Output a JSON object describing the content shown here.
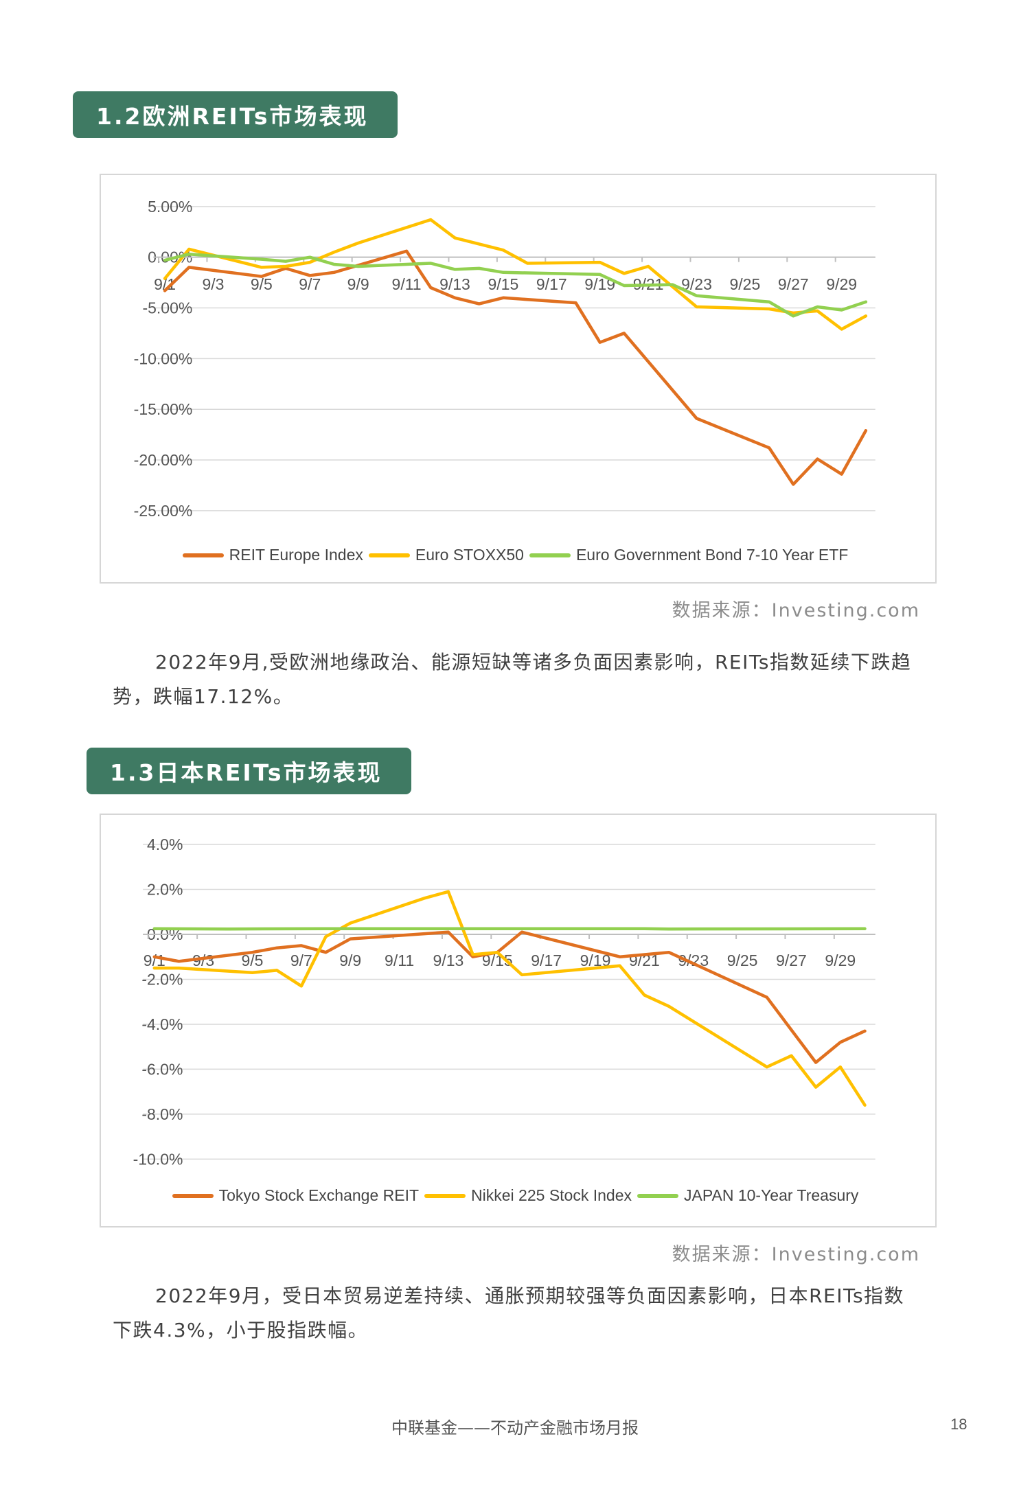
{
  "section1": {
    "heading": "1.2欧洲REITs市场表现",
    "source": "数据来源：Investing.com",
    "paragraph": "2022年9月,受欧洲地缘政治、能源短缺等诸多负面因素影响，REITs指数延续下跌趋势，跌幅17.12%。"
  },
  "section2": {
    "heading": "1.3日本REITs市场表现",
    "source": "数据来源：Investing.com",
    "paragraph": "2022年9月，受日本贸易逆差持续、通胀预期较强等负面因素影响，日本REITs指数下跌4.3%，小于股指跌幅。"
  },
  "footer": {
    "title": "中联基金——不动产金融市场月报",
    "page": "18"
  },
  "chart_data": [
    {
      "type": "line",
      "ylim": [
        -0.25,
        0.05
      ],
      "yticks": [
        0.05,
        0,
        -0.05,
        -0.1,
        -0.15,
        -0.2,
        -0.25
      ],
      "ytick_labels": [
        "5.00%",
        "0.00%",
        "-5.00%",
        "-10.00%",
        "-15.00%",
        "-20.00%",
        "-25.00%"
      ],
      "xtick_labels": [
        "9/1",
        "9/3",
        "9/5",
        "9/7",
        "9/9",
        "9/11",
        "9/13",
        "9/15",
        "9/17",
        "9/19",
        "9/21",
        "9/23",
        "9/25",
        "9/27",
        "9/29"
      ],
      "grid": true,
      "legend_position": "bottom",
      "series": [
        {
          "name": "REIT Europe Index",
          "color": "#e07020",
          "points": [
            [
              1,
              -0.033
            ],
            [
              2,
              -0.01
            ],
            [
              5,
              -0.019
            ],
            [
              6,
              -0.011
            ],
            [
              7,
              -0.018
            ],
            [
              8,
              -0.015
            ],
            [
              11,
              0.006
            ],
            [
              12,
              -0.03
            ],
            [
              13,
              -0.04
            ],
            [
              14,
              -0.046
            ],
            [
              15,
              -0.04
            ],
            [
              18,
              -0.045
            ],
            [
              19,
              -0.084
            ],
            [
              20,
              -0.075
            ],
            [
              23,
              -0.159
            ],
            [
              26,
              -0.188
            ],
            [
              27,
              -0.224
            ],
            [
              28,
              -0.199
            ],
            [
              29,
              -0.214
            ],
            [
              30,
              -0.171
            ]
          ]
        },
        {
          "name": "Euro STOXX50",
          "color": "#ffc000",
          "points": [
            [
              1,
              -0.021
            ],
            [
              2,
              0.008
            ],
            [
              5,
              -0.01
            ],
            [
              6,
              -0.009
            ],
            [
              7,
              -0.005
            ],
            [
              8,
              0.005
            ],
            [
              9,
              0.014
            ],
            [
              12,
              0.037
            ],
            [
              13,
              0.019
            ],
            [
              15,
              0.007
            ],
            [
              16,
              -0.006
            ],
            [
              19,
              -0.005
            ],
            [
              20,
              -0.016
            ],
            [
              21,
              -0.009
            ],
            [
              23,
              -0.049
            ],
            [
              26,
              -0.051
            ],
            [
              27,
              -0.055
            ],
            [
              28,
              -0.053
            ],
            [
              29,
              -0.071
            ],
            [
              30,
              -0.058
            ]
          ]
        },
        {
          "name": "Euro Government Bond 7-10 Year ETF",
          "color": "#92d050",
          "points": [
            [
              1,
              -0.003
            ],
            [
              2,
              0.003
            ],
            [
              5,
              -0.002
            ],
            [
              6,
              -0.004
            ],
            [
              7,
              0.0
            ],
            [
              8,
              -0.007
            ],
            [
              9,
              -0.009
            ],
            [
              12,
              -0.006
            ],
            [
              13,
              -0.012
            ],
            [
              14,
              -0.011
            ],
            [
              15,
              -0.015
            ],
            [
              19,
              -0.017
            ],
            [
              20,
              -0.028
            ],
            [
              22,
              -0.027
            ],
            [
              23,
              -0.038
            ],
            [
              26,
              -0.044
            ],
            [
              27,
              -0.058
            ],
            [
              28,
              -0.049
            ],
            [
              29,
              -0.052
            ],
            [
              30,
              -0.044
            ]
          ]
        }
      ]
    },
    {
      "type": "line",
      "ylim": [
        -0.1,
        0.04
      ],
      "yticks": [
        0.04,
        0.02,
        0,
        -0.02,
        -0.04,
        -0.06,
        -0.08,
        -0.1
      ],
      "ytick_labels": [
        "4.0%",
        "2.0%",
        "0.0%",
        "-2.0%",
        "-4.0%",
        "-6.0%",
        "-8.0%",
        "-10.0%"
      ],
      "xtick_labels": [
        "9/1",
        "9/3",
        "9/5",
        "9/7",
        "9/9",
        "9/11",
        "9/13",
        "9/15",
        "9/17",
        "9/19",
        "9/21",
        "9/23",
        "9/25",
        "9/27",
        "9/29"
      ],
      "grid": true,
      "legend_position": "bottom",
      "series": [
        {
          "name": "Tokyo Stock Exchange REIT",
          "color": "#e07020",
          "points": [
            [
              1,
              -0.01
            ],
            [
              2,
              -0.012
            ],
            [
              5,
              -0.008
            ],
            [
              6,
              -0.006
            ],
            [
              7,
              -0.005
            ],
            [
              8,
              -0.008
            ],
            [
              9,
              -0.002
            ],
            [
              13,
              0.001
            ],
            [
              14,
              -0.01
            ],
            [
              15,
              -0.008
            ],
            [
              16,
              0.001
            ],
            [
              20,
              -0.01
            ],
            [
              21,
              -0.009
            ],
            [
              22,
              -0.008
            ],
            [
              26,
              -0.028
            ],
            [
              28,
              -0.057
            ],
            [
              29,
              -0.048
            ],
            [
              30,
              -0.043
            ]
          ]
        },
        {
          "name": "Nikkei 225 Stock Index",
          "color": "#ffc000",
          "points": [
            [
              1,
              -0.015
            ],
            [
              2,
              -0.015
            ],
            [
              5,
              -0.017
            ],
            [
              6,
              -0.016
            ],
            [
              7,
              -0.023
            ],
            [
              8,
              -0.001
            ],
            [
              9,
              0.005
            ],
            [
              12,
              0.016
            ],
            [
              13,
              0.019
            ],
            [
              14,
              -0.009
            ],
            [
              15,
              -0.008
            ],
            [
              16,
              -0.018
            ],
            [
              20,
              -0.014
            ],
            [
              21,
              -0.027
            ],
            [
              22,
              -0.032
            ],
            [
              26,
              -0.059
            ],
            [
              27,
              -0.054
            ],
            [
              28,
              -0.068
            ],
            [
              29,
              -0.059
            ],
            [
              30,
              -0.076
            ]
          ]
        },
        {
          "name": "JAPAN 10-Year Treasury",
          "color": "#92d050",
          "points": [
            [
              1,
              0.0025
            ],
            [
              4,
              0.0024
            ],
            [
              8,
              0.0025
            ],
            [
              16,
              0.0025
            ],
            [
              21,
              0.0025
            ],
            [
              22,
              0.0024
            ],
            [
              30,
              0.0025
            ]
          ]
        }
      ]
    }
  ]
}
